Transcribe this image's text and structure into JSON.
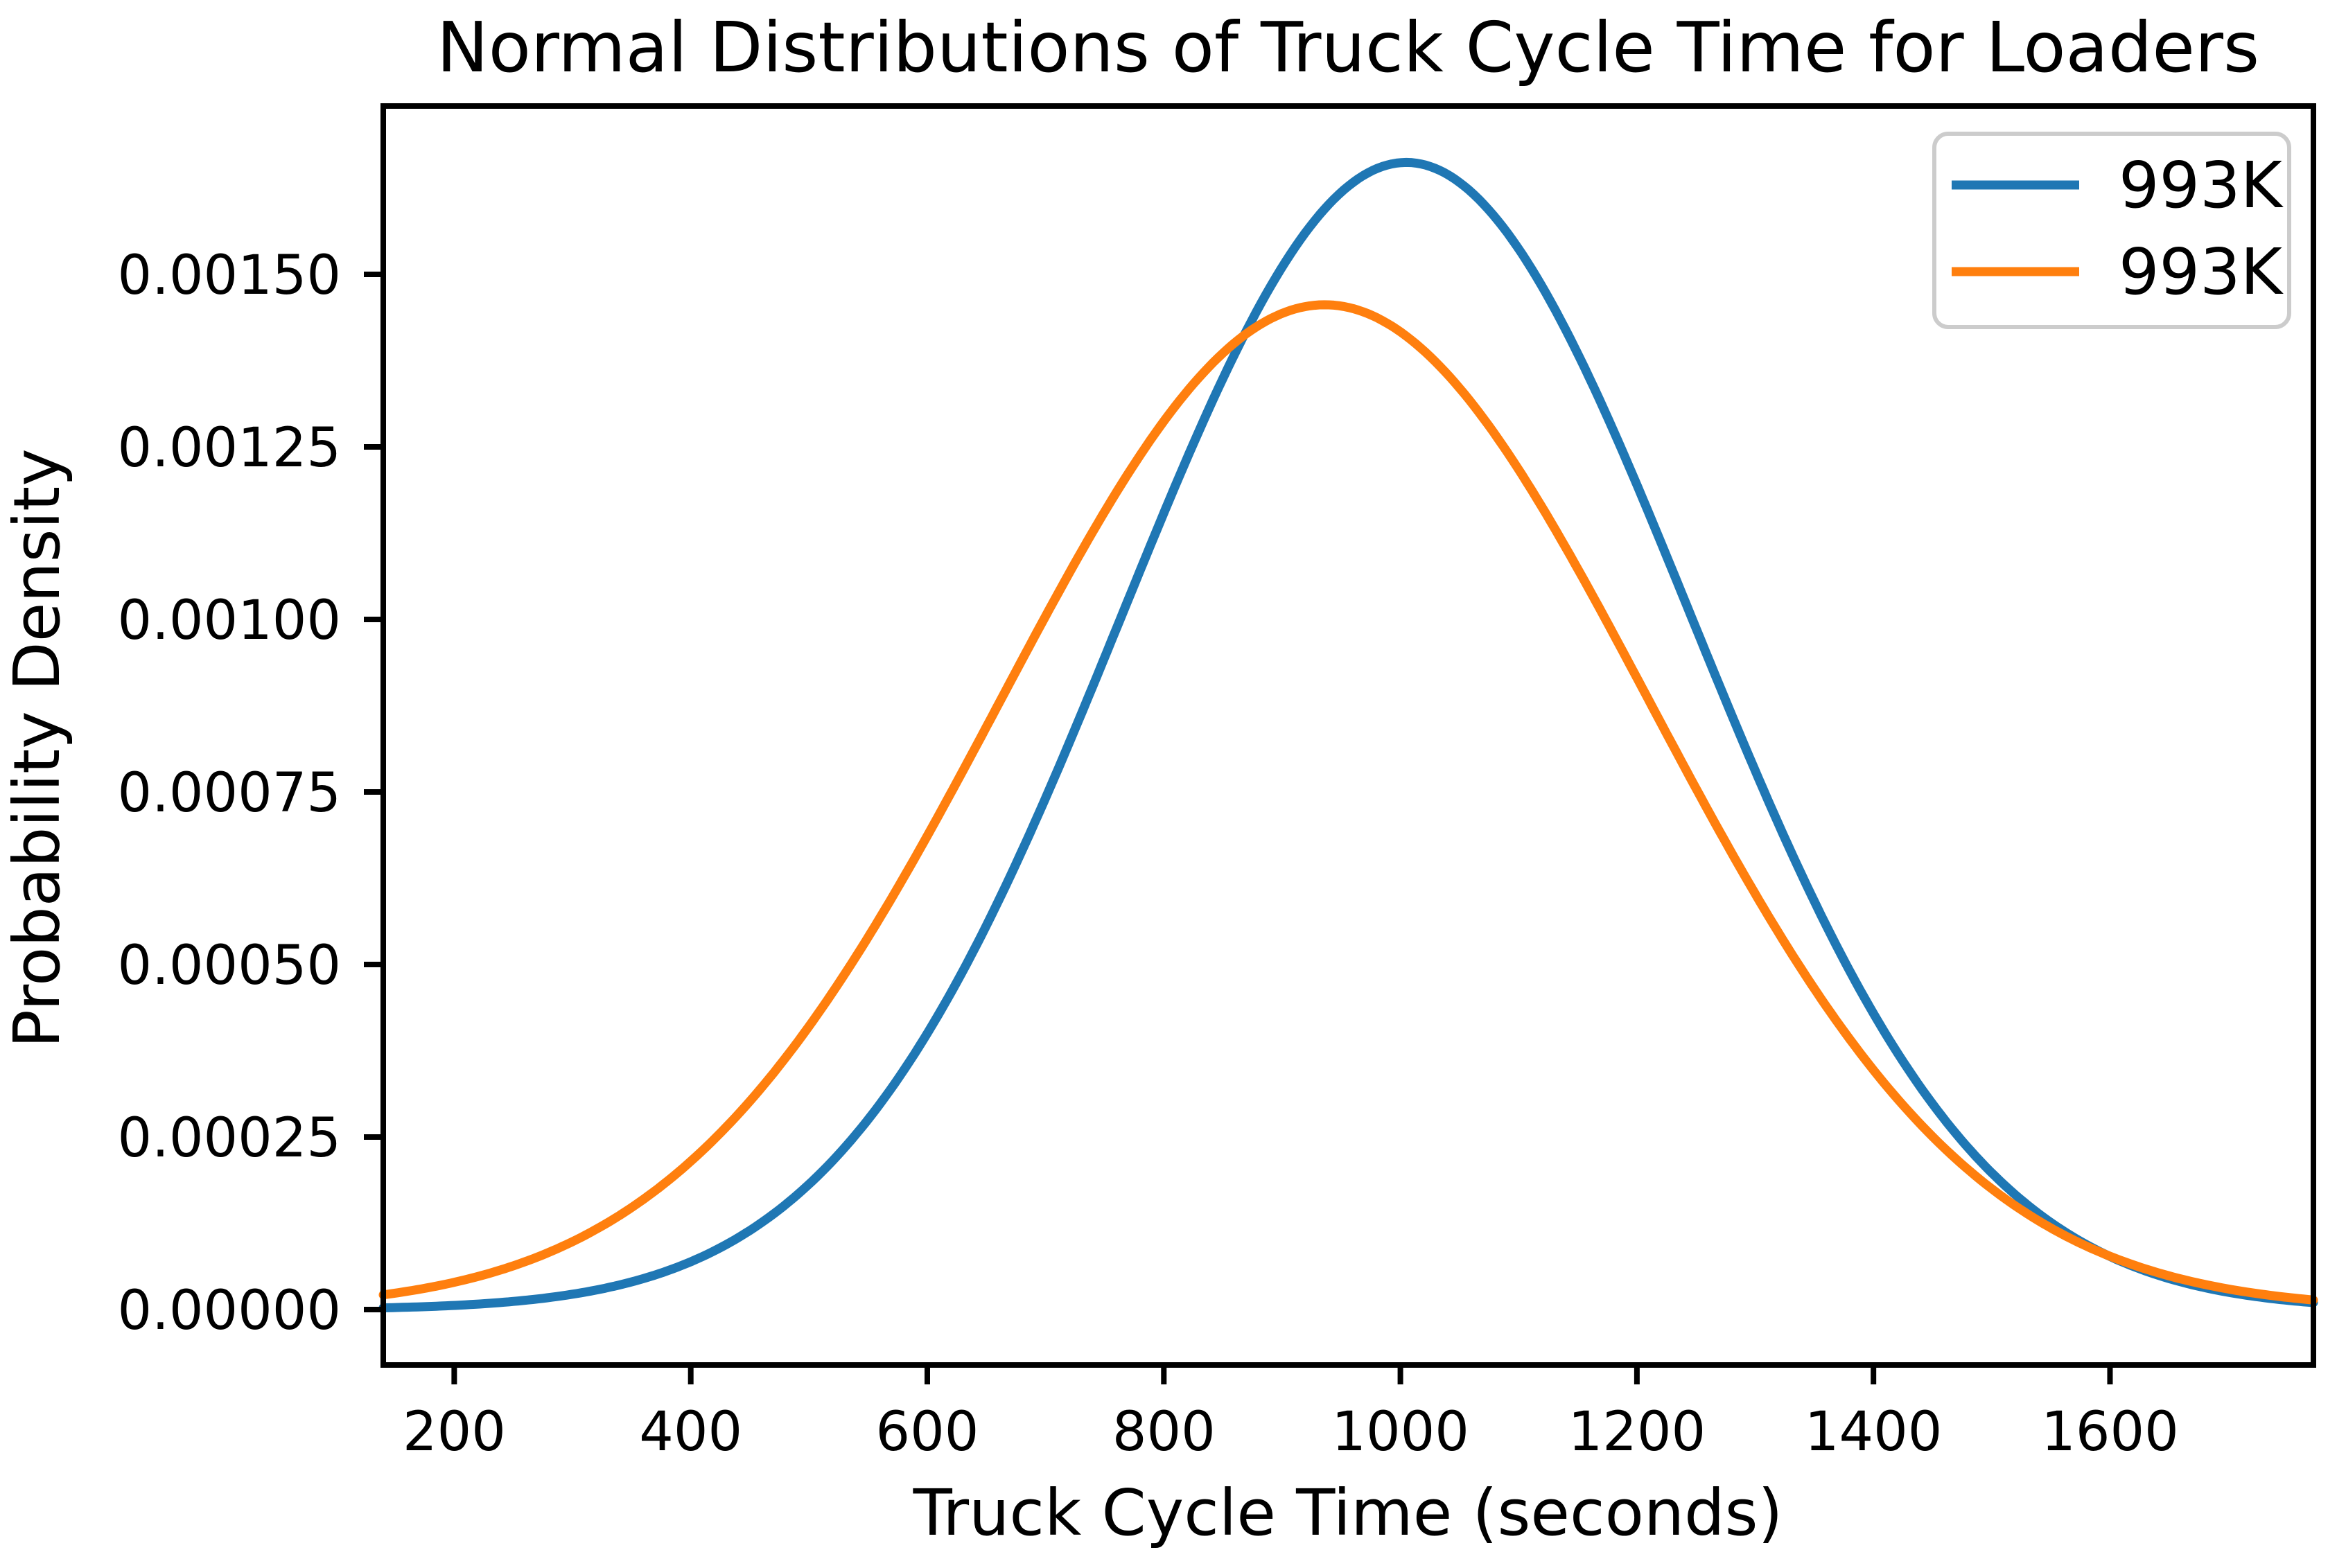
{
  "chart_data": {
    "type": "line",
    "title": "Normal Distributions of Truck Cycle Time for Loaders",
    "xlabel": "Truck Cycle Time (seconds)",
    "ylabel": "Probability Density",
    "xlim": [
      140,
      1772
    ],
    "ylim": [
      -8.03e-05,
      0.001744
    ],
    "grid": false,
    "x_ticks": {
      "values": [
        200,
        400,
        600,
        800,
        1000,
        1200,
        1400,
        1600
      ],
      "labels": [
        "200",
        "400",
        "600",
        "800",
        "1000",
        "1200",
        "1400",
        "1600"
      ]
    },
    "y_ticks": {
      "values": [
        0,
        0.00025,
        0.0005,
        0.00075,
        0.001,
        0.00125,
        0.0015
      ],
      "labels": [
        "0.00000",
        "0.00025",
        "0.00050",
        "0.00075",
        "0.00100",
        "0.00125",
        "0.00150"
      ]
    },
    "series": [
      {
        "name": "993K",
        "color": "#1f77b4",
        "distribution": "normal",
        "mean": 1005,
        "std": 240,
        "peak_density": 0.00166,
        "peak_x": 1005
      },
      {
        "name": "993K",
        "color": "#ff7f0e",
        "distribution": "normal",
        "mean": 936,
        "std": 274,
        "peak_density": 0.00146,
        "peak_x": 936
      }
    ],
    "legend": {
      "position": "upper right",
      "entries": [
        {
          "label": "993K",
          "color": "#1f77b4"
        },
        {
          "label": "993K",
          "color": "#ff7f0e"
        }
      ]
    }
  },
  "colors": {
    "background": "#ffffff",
    "axis": "#000000",
    "legend_border": "#cccccc",
    "series_blue": "#1f77b4",
    "series_orange": "#ff7f0e"
  }
}
